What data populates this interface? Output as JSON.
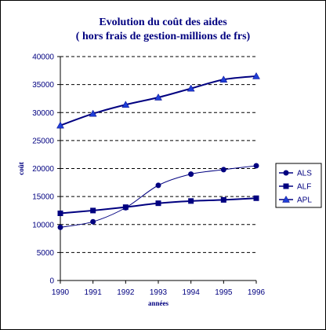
{
  "chart_data": {
    "type": "line",
    "title": "Evolution du coût des aides",
    "subtitle": "( hors frais de gestion-millions de  frs)",
    "xlabel": "années",
    "ylabel": "coût",
    "x": [
      "1990",
      "1991",
      "1992",
      "1993",
      "1994",
      "1995",
      "1996"
    ],
    "y_ticks": [
      "0",
      "5000",
      "10000",
      "15000",
      "20000",
      "25000",
      "30000",
      "35000",
      "40000"
    ],
    "ylim": [
      0,
      40000
    ],
    "grid": "horizontal dashed",
    "legend_position": "right",
    "series": [
      {
        "name": "ALS",
        "marker": "circle",
        "color": "#000080",
        "values": [
          9500,
          10500,
          13000,
          17000,
          19000,
          19800,
          20500
        ]
      },
      {
        "name": "ALF",
        "marker": "square",
        "color": "#000080",
        "values": [
          12000,
          12500,
          13100,
          13800,
          14200,
          14400,
          14700
        ]
      },
      {
        "name": "APL",
        "marker": "triangle",
        "color": "#000080",
        "values": [
          27700,
          29800,
          31400,
          32700,
          34300,
          35900,
          36500
        ]
      }
    ]
  }
}
